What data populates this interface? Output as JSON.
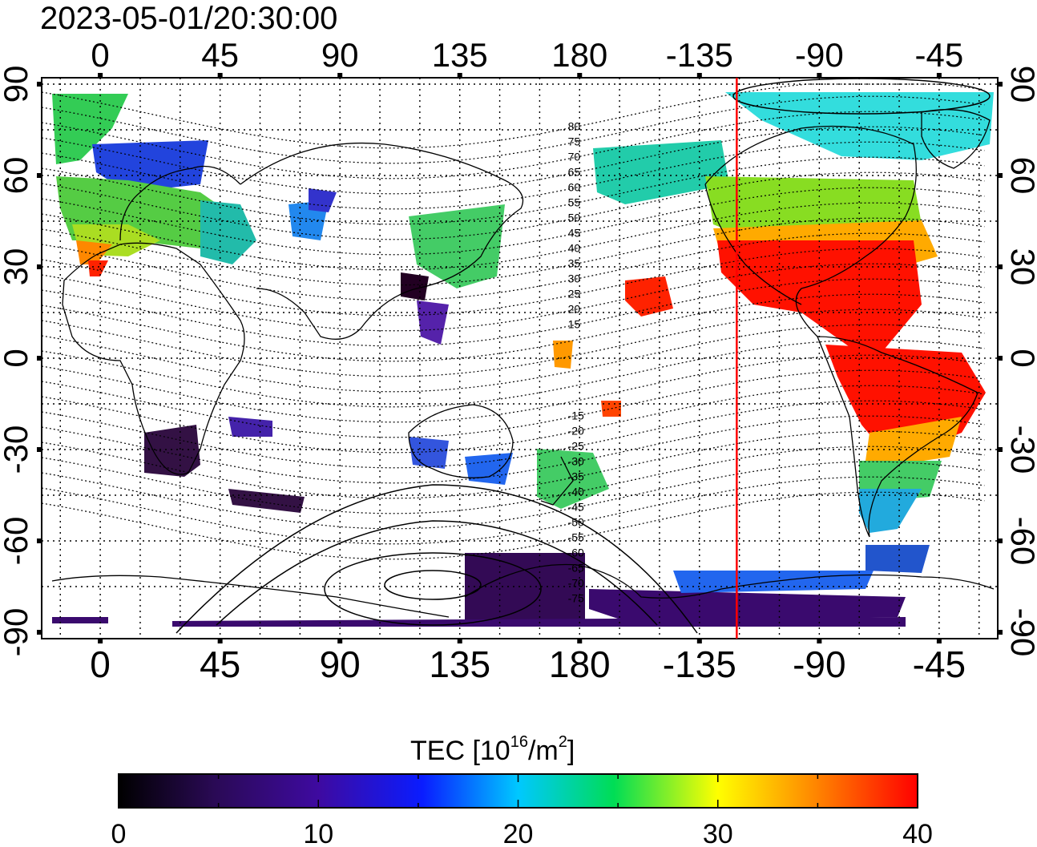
{
  "title": "2023-05-01/20:30:00",
  "colorbar": {
    "label_main": "TEC  [10",
    "label_exp": "16",
    "label_unit": "/m",
    "label_exp2": "2",
    "label_end": "]",
    "ticks": [
      "0",
      "10",
      "20",
      "30",
      "40"
    ],
    "range": [
      0,
      40
    ]
  },
  "axes": {
    "x_ticks": [
      "0",
      "45",
      "90",
      "135",
      "180",
      "-135",
      "-90",
      "-45"
    ],
    "x_tick_lons": [
      0,
      45,
      90,
      135,
      180,
      225,
      270,
      315
    ],
    "y_ticks_left": [
      "90",
      "60",
      "30",
      "0",
      "-30",
      "-60",
      "-90"
    ],
    "y_ticks_right": [
      "90",
      "60",
      "30",
      "0",
      "-30",
      "-60",
      "-90"
    ],
    "y_tick_lats": [
      90,
      60,
      30,
      0,
      -30,
      -60,
      -90
    ],
    "lon_range": [
      -22,
      337
    ],
    "lat_range": [
      -90,
      90
    ],
    "grid": "dotted 15deg"
  },
  "contour_labels": [
    "80",
    "75",
    "70",
    "65",
    "60",
    "55",
    "50",
    "45",
    "40",
    "35",
    "30",
    "25",
    "20",
    "15",
    "-15",
    "-20",
    "-25",
    "-30",
    "-35",
    "-40",
    "-45",
    "-50",
    "-55",
    "-60",
    "-65",
    "-70",
    "-75"
  ],
  "terminator": {
    "lon": 239,
    "color": "#ff0000"
  },
  "colors": {
    "min": "#000000",
    "low": "#3b0a6e",
    "mid": "#00ffff",
    "high": "#ff0000"
  }
}
